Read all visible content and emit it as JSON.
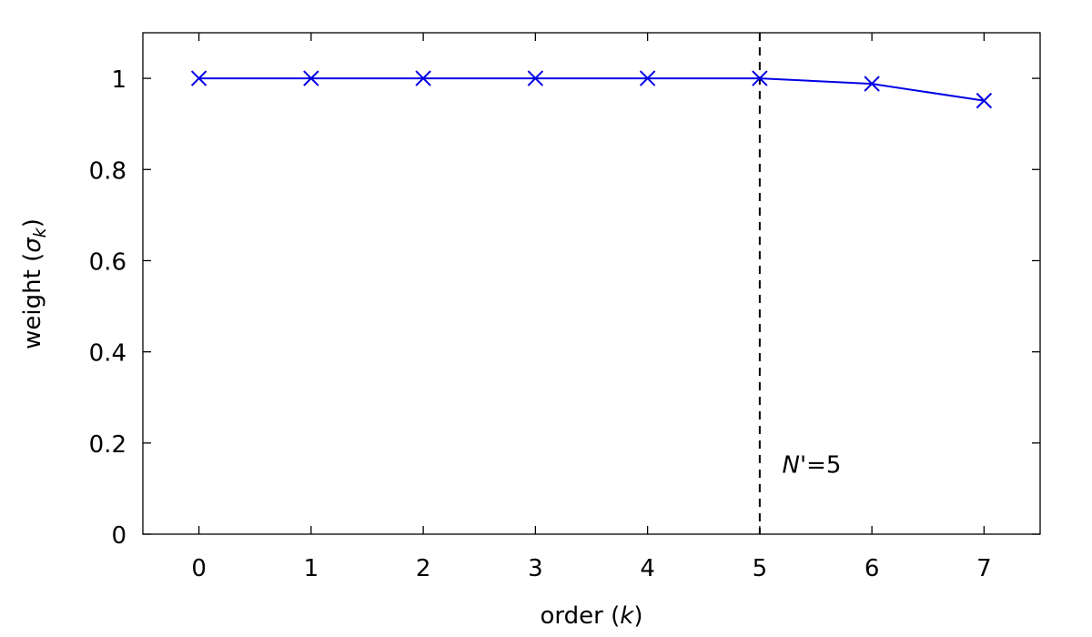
{
  "chart_data": {
    "type": "line",
    "x": [
      0,
      1,
      2,
      3,
      4,
      5,
      6,
      7
    ],
    "series": [
      {
        "values": [
          1.0,
          1.0,
          1.0,
          1.0,
          1.0,
          1.0,
          0.988,
          0.951
        ],
        "color": "#0000e6",
        "marker": "x"
      }
    ],
    "xlabel_prefix": "order (",
    "xlabel_var": "k",
    "xlabel_suffix": ")",
    "ylabel_prefix": "weight (",
    "ylabel_var": "σ",
    "ylabel_sub": "k",
    "ylabel_suffix": ")",
    "xlim": [
      -0.5,
      7.5
    ],
    "ylim": [
      0,
      1.1
    ],
    "xticks": [
      0,
      1,
      2,
      3,
      4,
      5,
      6,
      7
    ],
    "yticks": [
      0,
      0.2,
      0.4,
      0.6,
      0.8,
      1
    ],
    "ytick_labels": [
      "0",
      "0.2",
      "0.4",
      "0.6",
      "0.8",
      "1"
    ],
    "grid": false,
    "vline": {
      "x": 5,
      "style": "dashed"
    },
    "annotation": {
      "var": "N",
      "suffix": "'=5",
      "x": 5.2,
      "y": 0.135
    }
  }
}
